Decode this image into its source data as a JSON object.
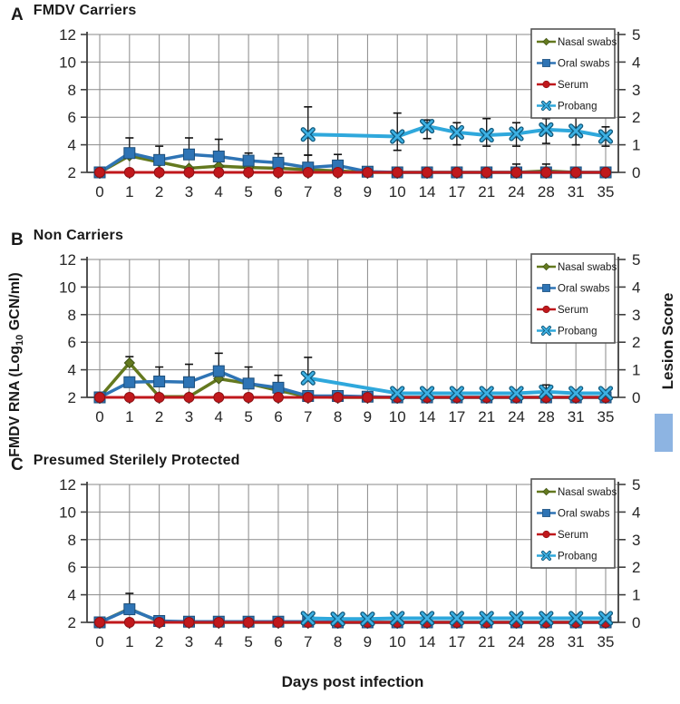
{
  "figure": {
    "left_axis_label": {
      "prefix": "FMDV RNA (Log",
      "sub": "10",
      "suffix": " GCN/ml)"
    },
    "right_axis_label": "Lesion Score",
    "x_axis_label": "Days post infection",
    "lesion_swatch_color": "#8db4e2",
    "colors": {
      "nasal": "#64791f",
      "oral": "#2e74b5",
      "serum": "#c0181c",
      "probang": "#2fa8dc",
      "grid": "#8a8a8a",
      "axis": "#3f3f3f",
      "error_bar": "#111111"
    }
  },
  "chart_data": [
    {
      "type": "line",
      "panel_letter": "A",
      "title": "FMDV Carriers",
      "categories": [
        0,
        1,
        2,
        3,
        4,
        5,
        6,
        7,
        8,
        9,
        10,
        14,
        17,
        21,
        24,
        28,
        31,
        35
      ],
      "left_ylim": [
        2,
        12
      ],
      "left_yticks": [
        2,
        4,
        6,
        8,
        10,
        12
      ],
      "right_yticks": [
        0,
        1,
        2,
        3,
        4,
        5
      ],
      "legend_position": "top-right",
      "grid": true,
      "series": [
        {
          "name": "Nasal swabs",
          "marker": "diamond",
          "color_key": "nasal",
          "values": [
            2,
            3.2,
            2.75,
            2.3,
            2.45,
            2.35,
            2.3,
            2.2,
            2.1,
            2,
            2,
            2,
            2,
            2,
            2,
            2.1,
            2,
            2
          ]
        },
        {
          "name": "Oral swabs",
          "marker": "square",
          "color_key": "oral",
          "values": [
            2,
            3.4,
            2.9,
            3.3,
            3.15,
            2.85,
            2.7,
            2.35,
            2.5,
            2.05,
            2,
            2,
            2,
            2,
            2,
            2,
            2,
            2
          ],
          "err_up": [
            null,
            1.1,
            1.0,
            1.2,
            1.25,
            0.55,
            0.65,
            0.9,
            0.8,
            null,
            null,
            null,
            null,
            null,
            0.6,
            0.6,
            null,
            null
          ]
        },
        {
          "name": "Serum",
          "marker": "circle",
          "color_key": "serum",
          "values": [
            2,
            2,
            2,
            2,
            2,
            2,
            2,
            2,
            2,
            2,
            2,
            2,
            2,
            2,
            2,
            2,
            2,
            2
          ]
        },
        {
          "name": "Probang",
          "marker": "x",
          "color_key": "probang",
          "values": [
            null,
            null,
            null,
            null,
            null,
            null,
            null,
            4.75,
            null,
            null,
            4.6,
            5.35,
            4.9,
            4.7,
            4.8,
            5.1,
            5.0,
            4.6
          ],
          "err_up": [
            null,
            null,
            null,
            null,
            null,
            null,
            null,
            2.0,
            null,
            null,
            1.7,
            0.45,
            0.7,
            1.2,
            0.8,
            0.8,
            1.2,
            0.7
          ],
          "err_down": [
            null,
            null,
            null,
            null,
            null,
            null,
            null,
            1.5,
            null,
            null,
            1.0,
            0.9,
            0.9,
            0.8,
            0.9,
            1.0,
            1.0,
            0.7
          ]
        }
      ]
    },
    {
      "type": "line",
      "panel_letter": "B",
      "title": "Non Carriers",
      "categories": [
        0,
        1,
        2,
        3,
        4,
        5,
        6,
        7,
        8,
        9,
        10,
        14,
        17,
        21,
        24,
        28,
        31,
        35
      ],
      "left_ylim": [
        2,
        12
      ],
      "left_yticks": [
        2,
        4,
        6,
        8,
        10,
        12
      ],
      "right_yticks": [
        0,
        1,
        2,
        3,
        4,
        5
      ],
      "legend_position": "top-right",
      "grid": true,
      "series": [
        {
          "name": "Nasal swabs",
          "marker": "diamond",
          "color_key": "nasal",
          "values": [
            2,
            4.5,
            2.05,
            2.05,
            3.35,
            3.0,
            2.5,
            2.05,
            2,
            2,
            2,
            2,
            2,
            2,
            2,
            2,
            2,
            2
          ],
          "err_up": [
            null,
            0.45,
            null,
            null,
            null,
            null,
            null,
            null,
            null,
            null,
            null,
            null,
            null,
            null,
            null,
            null,
            null,
            null
          ]
        },
        {
          "name": "Oral swabs",
          "marker": "square",
          "color_key": "oral",
          "values": [
            2,
            3.1,
            3.15,
            3.1,
            3.9,
            3.0,
            2.7,
            2.1,
            2.1,
            2.05,
            2,
            2,
            2,
            2,
            2,
            2,
            2,
            2
          ],
          "err_up": [
            null,
            null,
            1.05,
            1.3,
            1.3,
            1.2,
            0.9,
            null,
            null,
            null,
            null,
            null,
            null,
            null,
            null,
            null,
            null,
            null
          ]
        },
        {
          "name": "Serum",
          "marker": "circle",
          "color_key": "serum",
          "values": [
            2,
            2,
            2,
            2,
            2,
            2,
            2,
            2,
            2,
            2,
            2,
            2,
            2,
            2,
            2,
            2,
            2,
            2
          ]
        },
        {
          "name": "Probang",
          "marker": "x",
          "color_key": "probang",
          "values": [
            null,
            null,
            null,
            null,
            null,
            null,
            null,
            3.4,
            null,
            null,
            2.3,
            2.3,
            2.3,
            2.3,
            2.3,
            2.4,
            2.3,
            2.3
          ],
          "err_up": [
            null,
            null,
            null,
            null,
            null,
            null,
            null,
            1.5,
            null,
            null,
            null,
            null,
            null,
            null,
            null,
            0.5,
            null,
            null
          ]
        }
      ]
    },
    {
      "type": "line",
      "panel_letter": "C",
      "title": "Presumed Sterilely Protected",
      "categories": [
        0,
        1,
        2,
        3,
        4,
        5,
        6,
        7,
        8,
        9,
        10,
        14,
        17,
        21,
        24,
        28,
        31,
        35
      ],
      "left_ylim": [
        2,
        12
      ],
      "left_yticks": [
        2,
        4,
        6,
        8,
        10,
        12
      ],
      "right_yticks": [
        0,
        1,
        2,
        3,
        4,
        5
      ],
      "legend_position": "top-right",
      "grid": true,
      "series": [
        {
          "name": "Nasal swabs",
          "marker": "diamond",
          "color_key": "nasal",
          "values": [
            2,
            3.0,
            2.05,
            2,
            2,
            2,
            2,
            2,
            2,
            2,
            2,
            2,
            2,
            2,
            2,
            2,
            2,
            2
          ]
        },
        {
          "name": "Oral swabs",
          "marker": "square",
          "color_key": "oral",
          "values": [
            2,
            2.95,
            2.1,
            2.05,
            2.05,
            2.05,
            2.05,
            2.05,
            2,
            2,
            2,
            2,
            2,
            2,
            2,
            2,
            2,
            2
          ],
          "err_up": [
            null,
            1.15,
            null,
            null,
            null,
            null,
            null,
            null,
            null,
            null,
            null,
            null,
            null,
            null,
            null,
            null,
            null,
            null
          ]
        },
        {
          "name": "Serum",
          "marker": "circle",
          "color_key": "serum",
          "values": [
            2,
            2,
            2,
            2,
            2,
            2,
            2,
            2,
            2,
            2,
            2,
            2,
            2,
            2,
            2,
            2,
            2,
            2
          ]
        },
        {
          "name": "Probang",
          "marker": "x",
          "color_key": "probang",
          "values": [
            null,
            null,
            null,
            null,
            null,
            null,
            null,
            2.3,
            2.25,
            2.25,
            2.3,
            2.3,
            2.3,
            2.3,
            2.3,
            2.3,
            2.3,
            2.3
          ]
        }
      ]
    }
  ]
}
